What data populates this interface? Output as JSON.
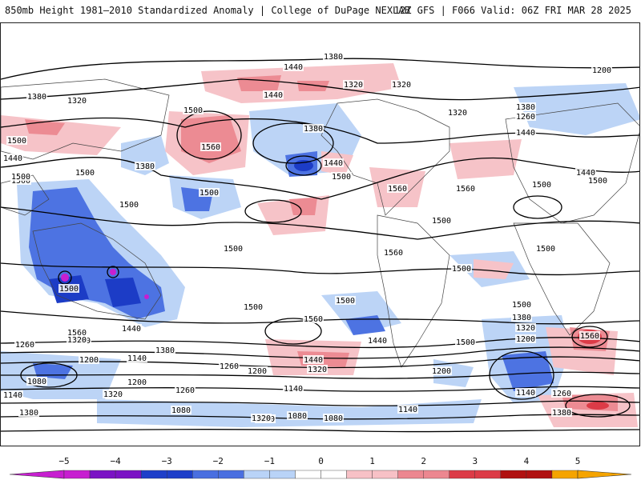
{
  "header": {
    "title": "850mb Height 1981–2010 Standardized Anomaly | College of DuPage NEXLAB",
    "run_info": "12Z GFS | F066 Valid: 06Z FRI MAR 28 2025"
  },
  "colorbar": {
    "ticks": [
      "−5",
      "−4",
      "−3",
      "−2",
      "−1",
      "0",
      "1",
      "2",
      "3",
      "4",
      "5"
    ],
    "colors": [
      "#c71fd0",
      "#7b12c4",
      "#1e3fc9",
      "#4a6fe0",
      "#b9d3f7",
      "#ffffff",
      "#f7c1c6",
      "#ec8790",
      "#dc3b47",
      "#b01010",
      "#f5a400"
    ]
  },
  "map": {
    "contour_labels": [
      "1380",
      "1440",
      "1320",
      "1320",
      "1200",
      "1380",
      "1320",
      "1440",
      "1320",
      "1500",
      "1380",
      "1260",
      "1500",
      "1440",
      "1560",
      "1440",
      "1500",
      "1380",
      "1380",
      "1500",
      "1440",
      "1440",
      "1500",
      "1500",
      "1500",
      "1500",
      "1560",
      "1560",
      "1500",
      "1500",
      "1500",
      "1500",
      "1560",
      "1500",
      "1500",
      "1500",
      "1500",
      "1500",
      "1500",
      "1560",
      "1500",
      "1440",
      "1380",
      "1560",
      "1500",
      "1380",
      "1320",
      "1200",
      "1560",
      "1440",
      "1320",
      "1260",
      "1200",
      "1140",
      "1440",
      "1320",
      "1260",
      "1200",
      "1080",
      "1200",
      "1140",
      "1380",
      "1260",
      "1080",
      "1080",
      "1200",
      "1140",
      "1140",
      "1320",
      "1140",
      "1080",
      "1080",
      "1140",
      "1260",
      "1380",
      "1320"
    ]
  }
}
